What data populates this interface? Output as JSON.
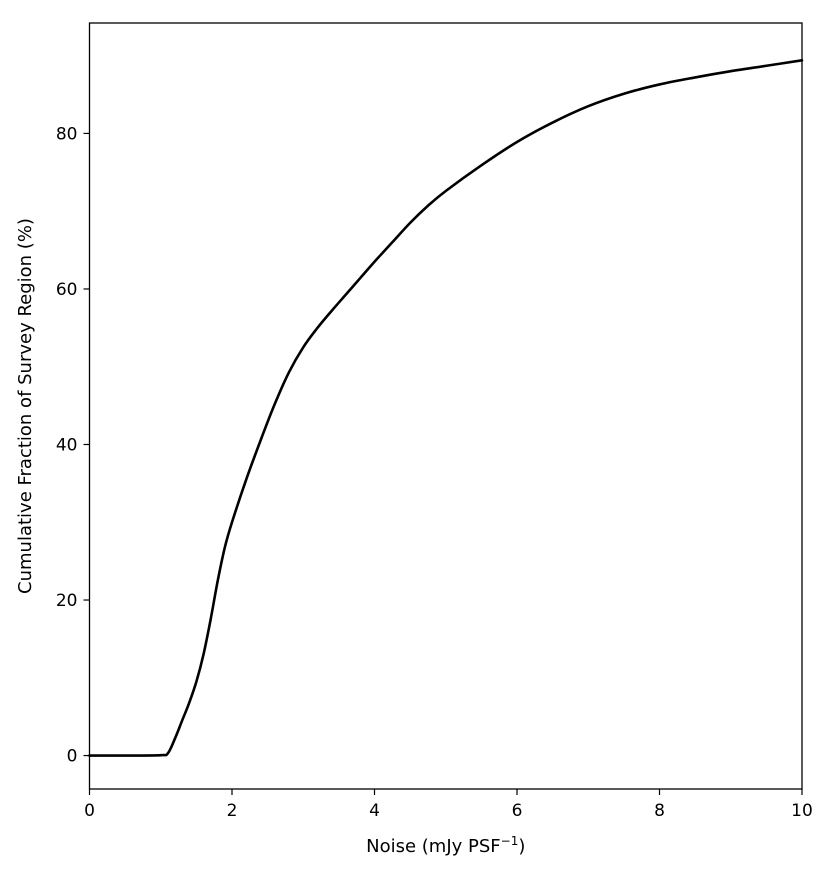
{
  "chart_data": {
    "type": "line",
    "title": "",
    "xlabel_main": "Noise (mJy PSF",
    "xlabel_sup": "−1",
    "xlabel_end": ")",
    "ylabel": "Cumulative Fraction of Survey Region (%)",
    "xlim": [
      0,
      10
    ],
    "ylim": [
      -4.3,
      94.2
    ],
    "xticks": [
      0,
      2,
      4,
      6,
      8,
      10
    ],
    "yticks": [
      0,
      20,
      40,
      60,
      80
    ],
    "xtick_labels": [
      "0",
      "2",
      "4",
      "6",
      "8",
      "10"
    ],
    "ytick_labels": [
      "0",
      "20",
      "40",
      "60",
      "80"
    ],
    "grid": false,
    "series": [
      {
        "color": "#000000",
        "x": [
          0,
          0.5,
          1.0,
          1.1,
          1.2,
          1.3,
          1.4,
          1.5,
          1.6,
          1.7,
          1.8,
          1.9,
          2.0,
          2.2,
          2.4,
          2.6,
          2.8,
          3.0,
          3.2,
          3.4,
          3.6,
          3.8,
          4.0,
          4.25,
          4.5,
          4.75,
          5.0,
          5.5,
          6.0,
          6.5,
          7.0,
          7.5,
          8.0,
          8.5,
          9.0,
          9.5,
          10.0
        ],
        "y": [
          0,
          0,
          0.05,
          0.3,
          2.2,
          4.5,
          6.8,
          9.5,
          13.0,
          17.5,
          22.5,
          26.8,
          30.0,
          35.5,
          40.5,
          45.2,
          49.3,
          52.5,
          55.0,
          57.2,
          59.3,
          61.4,
          63.5,
          66.0,
          68.5,
          70.7,
          72.6,
          75.9,
          78.9,
          81.4,
          83.5,
          85.1,
          86.3,
          87.2,
          88.0,
          88.7,
          89.4
        ]
      }
    ]
  }
}
